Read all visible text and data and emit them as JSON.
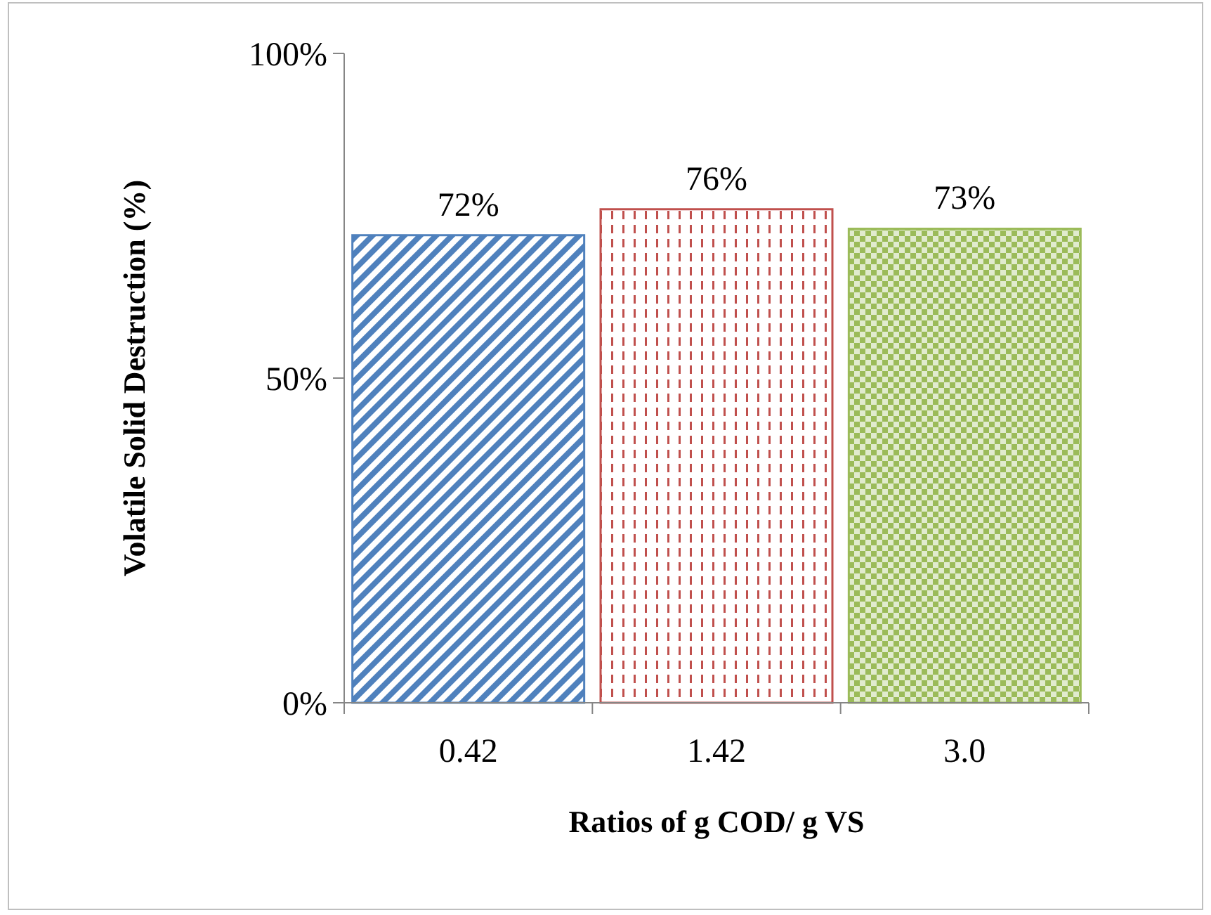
{
  "chart_data": {
    "type": "bar",
    "ylabel": "Volatile Solid Destruction (%)",
    "xlabel": "Ratios of g COD/ g VS",
    "categories": [
      "0.42",
      "1.42",
      "3.0"
    ],
    "values": [
      72,
      76,
      73
    ],
    "colors": [
      "#4f81bd",
      "#c0504d",
      "#9bbb59"
    ],
    "value_labels": [
      "72%",
      "76%",
      "73%"
    ],
    "ylim": [
      0,
      100
    ],
    "yticks": [
      {
        "value": 0,
        "label": "0%"
      },
      {
        "value": 50,
        "label": "50%"
      },
      {
        "value": 100,
        "label": "100%"
      }
    ],
    "grid": false
  }
}
